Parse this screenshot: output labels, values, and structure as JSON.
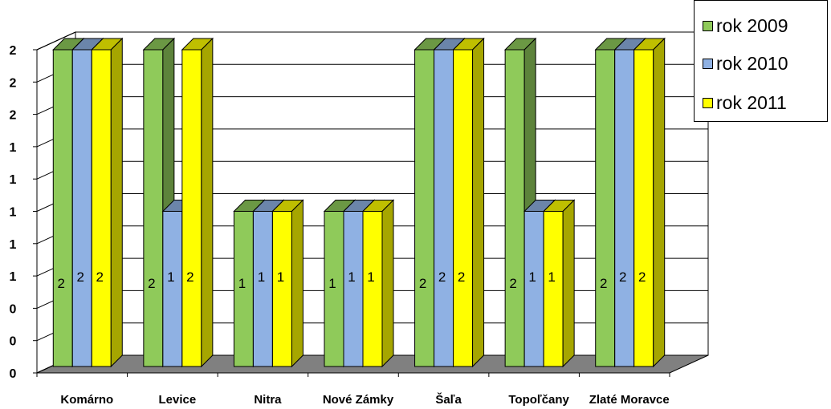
{
  "chart_data": {
    "type": "bar",
    "title": "",
    "xlabel": "",
    "ylabel": "",
    "categories": [
      "Komárno",
      "Levice",
      "Nitra",
      "Nové Zámky",
      "Šaľa",
      "Topoľčany",
      "Zlaté Moravce"
    ],
    "series": [
      {
        "name": "rok 2009",
        "color": "#8fca5a",
        "values": [
          2,
          2,
          1,
          1,
          2,
          2,
          2
        ]
      },
      {
        "name": "rok 2010",
        "color": "#8fb1e3",
        "values": [
          2,
          1,
          1,
          1,
          2,
          1,
          2
        ]
      },
      {
        "name": "rok 2011",
        "color": "#ffff00",
        "values": [
          2,
          2,
          1,
          1,
          2,
          1,
          2
        ]
      }
    ],
    "y_tick_labels": [
      "0",
      "0",
      "0",
      "1",
      "1",
      "1",
      "1",
      "1",
      "2",
      "2",
      "2"
    ],
    "ylim": [
      0,
      2
    ],
    "grid": true,
    "legend_position": "top-right",
    "three_d": true
  }
}
